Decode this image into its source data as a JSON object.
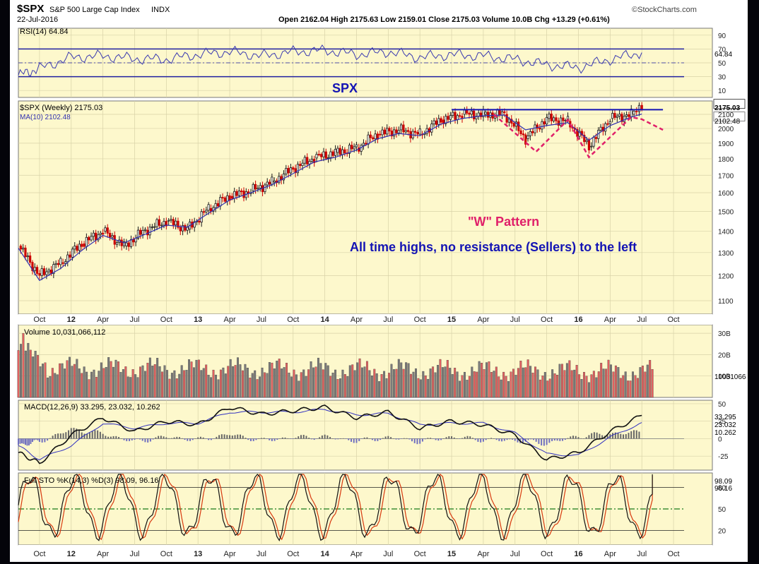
{
  "header": {
    "symbol": "$SPX",
    "name": "S&P 500 Large Cap Index",
    "exchange": "INDX",
    "date": "22-Jul-2016",
    "watermark": "©StockCharts.com",
    "quote": "Open 2162.04  High 2175.63  Low 2159.01  Close 2175.03  Volume 10.0B  Chg +13.29 (+0.61%)"
  },
  "colors": {
    "panel_bg": "#fdf8cc",
    "grid": "#d8d2a8",
    "up_bar": "#1a1a1a",
    "down_bar": "#cc0000",
    "ma_line": "#3030b0",
    "annotation_blue": "#1414b4",
    "annotation_pink": "#e0206a",
    "volume_up": "#7a7a7a",
    "volume_down": "#e06060",
    "macd_line": "#111111",
    "signal_line": "#3030c0",
    "histogram": "#7070c0",
    "stoch_k": "#111111",
    "stoch_d": "#d83a10"
  },
  "annotations": {
    "spx_label": "SPX",
    "w_pattern": "\"W\" Pattern",
    "note": "All time highs, no resistance  (Sellers) to the left"
  },
  "chart_data": [
    {
      "type": "line",
      "panel": "rsi",
      "title": "RSI(14) 64.84",
      "indicator": "RSI(14)",
      "last_value": 64.84,
      "last_label": "64.84",
      "ylim": [
        0,
        100
      ],
      "yticks": [
        10,
        30,
        50,
        70,
        90
      ],
      "reference_lines": [
        70,
        30
      ],
      "x": [
        "2011-08",
        "2011-10",
        "2012-01",
        "2012-04",
        "2012-07",
        "2012-10",
        "2013-01",
        "2013-04",
        "2013-07",
        "2013-10",
        "2014-01",
        "2014-04",
        "2014-07",
        "2014-10",
        "2015-01",
        "2015-04",
        "2015-07",
        "2015-10",
        "2016-01",
        "2016-04",
        "2016-07"
      ],
      "values": [
        32,
        42,
        58,
        60,
        56,
        55,
        62,
        66,
        60,
        66,
        68,
        62,
        66,
        58,
        62,
        60,
        55,
        47,
        43,
        55,
        64.84
      ]
    },
    {
      "type": "candlestick",
      "panel": "price",
      "title": "$SPX (Weekly) 2175.03",
      "series": [
        {
          "name": "$SPX (Weekly) 2175.03",
          "last_value": 2175.03
        },
        {
          "name": "MA(10) 2102.48",
          "last_value": 2102.48
        }
      ],
      "last_label": "2175.03",
      "ma_label": "2102.48",
      "ylim": [
        1050,
        2200
      ],
      "scale": "log",
      "yticks": [
        1100,
        1200,
        1300,
        1400,
        1500,
        1600,
        1700,
        1800,
        1900,
        2000,
        2100
      ],
      "x_tick_labels": [
        "Oct",
        "12",
        "Apr",
        "Jul",
        "Oct",
        "13",
        "Apr",
        "Jul",
        "Oct",
        "14",
        "Apr",
        "Jul",
        "Oct",
        "15",
        "Apr",
        "Jul",
        "Oct",
        "16",
        "Apr",
        "Jul",
        "Oct"
      ],
      "x": [
        "2011-08",
        "2011-10",
        "2011-12",
        "2012-02",
        "2012-04",
        "2012-06",
        "2012-08",
        "2012-10",
        "2012-12",
        "2013-02",
        "2013-04",
        "2013-06",
        "2013-08",
        "2013-10",
        "2013-12",
        "2014-02",
        "2014-04",
        "2014-06",
        "2014-08",
        "2014-10",
        "2014-12",
        "2015-02",
        "2015-04",
        "2015-06",
        "2015-08",
        "2015-10",
        "2015-12",
        "2016-02",
        "2016-04",
        "2016-06",
        "2016-07"
      ],
      "close": [
        1330,
        1200,
        1255,
        1340,
        1400,
        1330,
        1405,
        1450,
        1410,
        1515,
        1580,
        1610,
        1660,
        1740,
        1805,
        1840,
        1870,
        1960,
        1990,
        1960,
        2060,
        2100,
        2100,
        2100,
        1930,
        2070,
        2050,
        1880,
        2070,
        2100,
        2175.03
      ],
      "ma10": [
        1320,
        1180,
        1230,
        1310,
        1380,
        1345,
        1385,
        1430,
        1420,
        1490,
        1560,
        1600,
        1645,
        1710,
        1780,
        1810,
        1855,
        1930,
        1965,
        1950,
        2030,
        2070,
        2090,
        2095,
        1990,
        2020,
        2040,
        1920,
        2020,
        2080,
        2102.48
      ],
      "resistance_level": 2134
    },
    {
      "type": "bar",
      "panel": "volume",
      "title": "Volume 10,031,066,112",
      "last_value": 10031066112,
      "last_label": "10031066",
      "ylim": [
        0,
        34
      ],
      "yticks": [
        10,
        20,
        30
      ],
      "ytick_labels": [
        "10B",
        "20B",
        "30B"
      ],
      "unit": "billions"
    },
    {
      "type": "line",
      "panel": "macd",
      "title": "MACD(12,26,9) 33.295, 23.032, 10.262",
      "series": [
        {
          "name": "MACD(12,26,9)",
          "last_value": 33.295
        },
        {
          "name": "Signal",
          "last_value": 23.032
        },
        {
          "name": "Histogram",
          "last_value": 10.262
        }
      ],
      "ylim": [
        -45,
        55
      ],
      "yticks": [
        -25,
        0,
        25,
        50
      ],
      "x": [
        "2011-08",
        "2011-10",
        "2012-01",
        "2012-04",
        "2012-07",
        "2012-10",
        "2013-01",
        "2013-04",
        "2013-07",
        "2013-10",
        "2014-01",
        "2014-04",
        "2014-07",
        "2014-10",
        "2015-01",
        "2015-04",
        "2015-07",
        "2015-10",
        "2016-01",
        "2016-04",
        "2016-07"
      ],
      "macd": [
        -20,
        -35,
        5,
        30,
        10,
        25,
        20,
        45,
        35,
        40,
        45,
        30,
        38,
        15,
        25,
        20,
        5,
        -30,
        -20,
        10,
        33.295
      ],
      "signal": [
        -10,
        -30,
        -10,
        22,
        15,
        22,
        22,
        38,
        38,
        38,
        42,
        34,
        36,
        20,
        22,
        22,
        8,
        -22,
        -24,
        2,
        23.032
      ]
    },
    {
      "type": "line",
      "panel": "stochastic",
      "title": "Full STO %K(14,3) %D(3) 98.09, 96.16",
      "series": [
        {
          "name": "%K(14,3)",
          "last_value": 98.09
        },
        {
          "name": "%D(3)",
          "last_value": 96.16
        }
      ],
      "ylim": [
        0,
        100
      ],
      "yticks": [
        20,
        50,
        80
      ],
      "reference_lines": [
        80,
        50,
        20
      ]
    }
  ]
}
